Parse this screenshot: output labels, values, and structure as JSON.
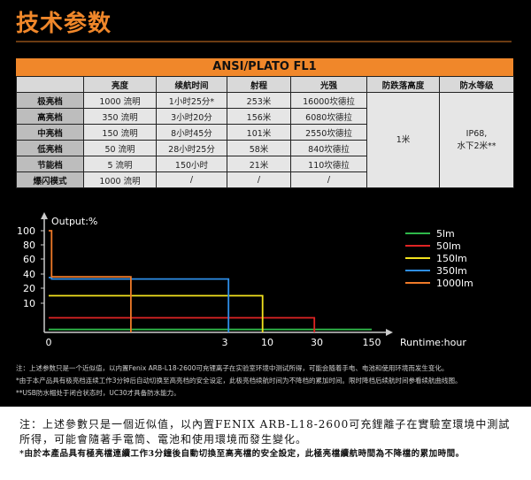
{
  "page": {
    "title": "技术参数"
  },
  "table": {
    "title": "ANSI/PLATO FL1",
    "headers": [
      "",
      "亮度",
      "续航时间",
      "射程",
      "光强",
      "防跌落高度",
      "防水等级"
    ],
    "rows": [
      {
        "mode": "极亮档",
        "brightness": "1000 流明",
        "runtime": "1小时25分*",
        "range": "253米",
        "intensity": "16000坎德拉"
      },
      {
        "mode": "高亮档",
        "brightness": "350 流明",
        "runtime": "3小时20分",
        "range": "156米",
        "intensity": "6080坎德拉"
      },
      {
        "mode": "中亮档",
        "brightness": "150 流明",
        "runtime": "8小时45分",
        "range": "101米",
        "intensity": "2550坎德拉"
      },
      {
        "mode": "低亮档",
        "brightness": "50 流明",
        "runtime": "28小时25分",
        "range": "58米",
        "intensity": "840坎德拉"
      },
      {
        "mode": "节能档",
        "brightness": "5 流明",
        "runtime": "150小时",
        "range": "21米",
        "intensity": "110坎德拉"
      },
      {
        "mode": "爆闪模式",
        "brightness": "1000 流明",
        "runtime": "/",
        "range": "/",
        "intensity": "/"
      }
    ],
    "impact": "1米",
    "waterproof_line1": "IP68,",
    "waterproof_line2": "水下2米**"
  },
  "chart_data": {
    "type": "line",
    "ylabel": "Output:%",
    "xlabel": "Runtime:hour",
    "y_ticks": [
      "100",
      "80",
      "60",
      "40",
      "20",
      "10"
    ],
    "x_ticks": [
      "0",
      "3",
      "10",
      "30",
      "150"
    ],
    "series": [
      {
        "name": "5lm",
        "color": "#2fb84a",
        "points": [
          [
            0,
            1
          ],
          [
            150,
            1
          ]
        ]
      },
      {
        "name": "50lm",
        "color": "#e02424",
        "points": [
          [
            0,
            5
          ],
          [
            28.4,
            5
          ],
          [
            28.4,
            0
          ]
        ]
      },
      {
        "name": "150lm",
        "color": "#f2e21e",
        "points": [
          [
            0,
            15
          ],
          [
            8.75,
            15
          ],
          [
            8.75,
            0
          ]
        ]
      },
      {
        "name": "350lm",
        "color": "#2e8ee8",
        "points": [
          [
            0,
            35
          ],
          [
            0.05,
            35
          ],
          [
            0.05,
            33
          ],
          [
            3.33,
            33
          ],
          [
            3.33,
            0
          ]
        ]
      },
      {
        "name": "1000lm",
        "color": "#ef7a28",
        "points": [
          [
            0,
            100
          ],
          [
            0.05,
            100
          ],
          [
            0.05,
            36
          ],
          [
            1.4,
            36
          ],
          [
            1.4,
            0
          ]
        ]
      }
    ]
  },
  "notes": [
    "注：上述参数只是一个近似值，以内置Fenix ARB-L18-2600可充锂离子在实验室环境中测试所得，可能会随着手电、电池和使用环境而发生变化。",
    "*由于本产品具有极亮档连续工作3分钟后自动切换至高亮档的安全设定，此极亮档续航时间为不降档的累加时间。限时降档后续航时间参看续航曲线图。",
    "**USB防水帽处于闭合状态时，UC30才具备防水能力。"
  ],
  "bottom": {
    "line1": "注：上述參數只是一個近似值，以內置FENIX ARB-L18-2600可充鋰離子在實驗室環境中測試所得，可能會隨著手電筒、電池和使用環境而發生變化。",
    "line2": "*由於本產品具有極亮檔連續工作3分鐘後自動切換至高亮檔的安全設定，此極亮檔續航時間為不降檔的累加時間。"
  }
}
